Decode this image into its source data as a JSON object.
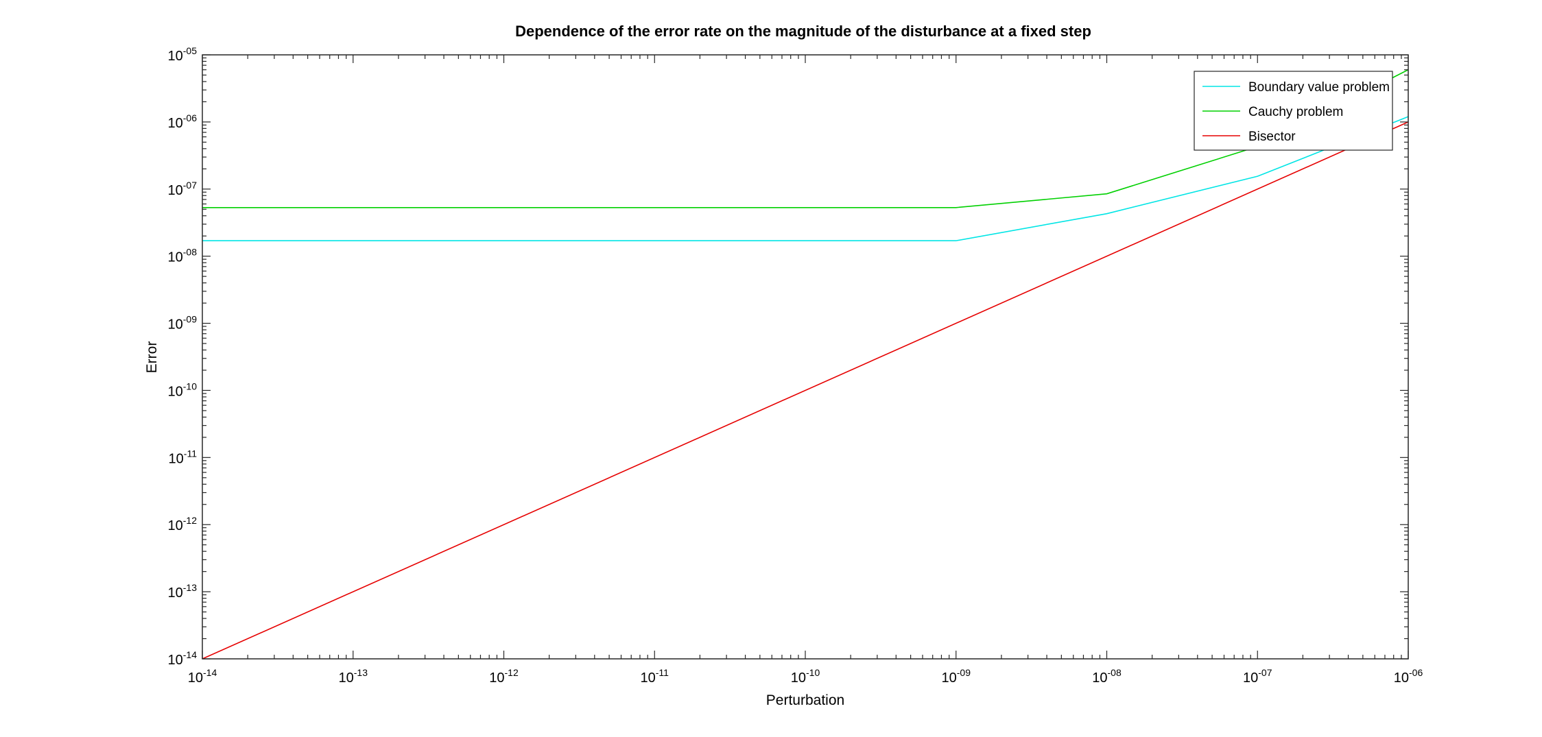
{
  "chart_data": {
    "type": "line",
    "title": "Dependence of the error rate on the magnitude of the disturbance at a fixed step",
    "xlabel": "Perturbation",
    "ylabel": "Error",
    "xscale": "log",
    "yscale": "log",
    "xlim": [
      1e-14,
      1e-06
    ],
    "ylim": [
      1e-14,
      1e-05
    ],
    "x_ticks": [
      {
        "value": 1e-14,
        "base": "10",
        "exp": "-14"
      },
      {
        "value": 1e-13,
        "base": "10",
        "exp": "-13"
      },
      {
        "value": 1e-12,
        "base": "10",
        "exp": "-12"
      },
      {
        "value": 1e-11,
        "base": "10",
        "exp": "-11"
      },
      {
        "value": 1e-10,
        "base": "10",
        "exp": "-10"
      },
      {
        "value": 1e-09,
        "base": "10",
        "exp": "-09"
      },
      {
        "value": 1e-08,
        "base": "10",
        "exp": "-08"
      },
      {
        "value": 1e-07,
        "base": "10",
        "exp": "-07"
      },
      {
        "value": 1e-06,
        "base": "10",
        "exp": "-06"
      }
    ],
    "y_ticks": [
      {
        "value": 1e-14,
        "base": "10",
        "exp": "-14"
      },
      {
        "value": 1e-13,
        "base": "10",
        "exp": "-13"
      },
      {
        "value": 1e-12,
        "base": "10",
        "exp": "-12"
      },
      {
        "value": 1e-11,
        "base": "10",
        "exp": "-11"
      },
      {
        "value": 1e-10,
        "base": "10",
        "exp": "-10"
      },
      {
        "value": 1e-09,
        "base": "10",
        "exp": "-09"
      },
      {
        "value": 1e-08,
        "base": "10",
        "exp": "-08"
      },
      {
        "value": 1e-07,
        "base": "10",
        "exp": "-07"
      },
      {
        "value": 1e-06,
        "base": "10",
        "exp": "-06"
      },
      {
        "value": 1e-05,
        "base": "10",
        "exp": "-05"
      }
    ],
    "grid": false,
    "legend_position": "top-right",
    "series": [
      {
        "name": "Boundary value problem",
        "color": "#00e5e5",
        "x": [
          1e-14,
          1e-13,
          1e-12,
          1e-11,
          1e-10,
          1e-09,
          1e-08,
          1e-07,
          1e-06
        ],
        "y": [
          1.7e-08,
          1.7e-08,
          1.7e-08,
          1.7e-08,
          1.7e-08,
          1.7e-08,
          4.3e-08,
          1.55e-07,
          1.2e-06
        ]
      },
      {
        "name": "Cauchy problem",
        "color": "#00d000",
        "x": [
          1e-14,
          1e-13,
          1e-12,
          1e-11,
          1e-10,
          1e-09,
          1e-08,
          1e-07,
          1e-06
        ],
        "y": [
          5.3e-08,
          5.3e-08,
          5.3e-08,
          5.3e-08,
          5.3e-08,
          5.3e-08,
          8.5e-08,
          4.3e-07,
          6e-06
        ]
      },
      {
        "name": "Bisector",
        "color": "#e60000",
        "x": [
          1e-14,
          1e-06
        ],
        "y": [
          1e-14,
          1e-06
        ]
      }
    ]
  }
}
